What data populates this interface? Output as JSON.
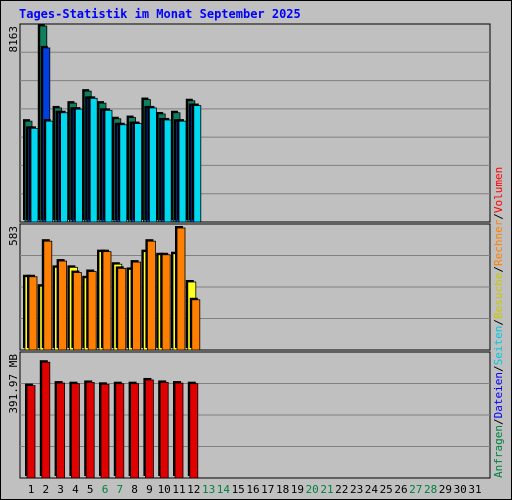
{
  "title": "Tages-Statistik im Monat September 2025",
  "colors": {
    "anfragen": "#0e8060",
    "dateien": "#0040e0",
    "seiten": "#00d8f0",
    "besuche": "#ffff20",
    "rechner": "#ff8000",
    "volumen": "#e00000",
    "weekend_label": "#008040",
    "weekday_label": "#000000"
  },
  "legend": [
    {
      "text": "Anfragen",
      "color": "#008040"
    },
    {
      "text": "/",
      "color": "#000000"
    },
    {
      "text": "Dateien",
      "color": "#0000ff"
    },
    {
      "text": "/",
      "color": "#000000"
    },
    {
      "text": "Seiten",
      "color": "#00c8e0"
    },
    {
      "text": "/",
      "color": "#000000"
    },
    {
      "text": "Besuche",
      "color": "#c8c800"
    },
    {
      "text": "/",
      "color": "#000000"
    },
    {
      "text": "Rechner",
      "color": "#ff8000"
    },
    {
      "text": "/",
      "color": "#000000"
    },
    {
      "text": "Volumen",
      "color": "#ff0000"
    }
  ],
  "chart_data": [
    {
      "type": "bar",
      "title": "Tages-Statistik im Monat September 2025",
      "ymax_label": "8163",
      "ylim": [
        0,
        8163
      ],
      "x": [
        1,
        2,
        3,
        4,
        5,
        6,
        7,
        8,
        9,
        10,
        11,
        12,
        13,
        14,
        15,
        16,
        17,
        18,
        19,
        20,
        21,
        22,
        23,
        24,
        25,
        26,
        27,
        28,
        29,
        30,
        31
      ],
      "series": [
        {
          "name": "Anfragen",
          "values": [
            4200,
            8163,
            4750,
            4950,
            5450,
            4950,
            4300,
            4350,
            5100,
            4500,
            4550,
            5050,
            0,
            0,
            0,
            0,
            0,
            0,
            0,
            0,
            0,
            0,
            0,
            0,
            0,
            0,
            0,
            0,
            0,
            0,
            0
          ]
        },
        {
          "name": "Dateien",
          "values": [
            3900,
            7250,
            4550,
            4700,
            5150,
            4650,
            4050,
            4100,
            4750,
            4250,
            4200,
            4850,
            0,
            0,
            0,
            0,
            0,
            0,
            0,
            0,
            0,
            0,
            0,
            0,
            0,
            0,
            0,
            0,
            0,
            0,
            0
          ]
        },
        {
          "name": "Seiten",
          "values": [
            3900,
            4200,
            4550,
            4700,
            5150,
            4650,
            4050,
            4100,
            4750,
            4250,
            4200,
            4850,
            0,
            0,
            0,
            0,
            0,
            0,
            0,
            0,
            0,
            0,
            0,
            0,
            0,
            0,
            0,
            0,
            0,
            0,
            0
          ]
        }
      ]
    },
    {
      "type": "bar",
      "ymax_label": "583",
      "ylim": [
        0,
        583
      ],
      "x": [
        1,
        2,
        3,
        4,
        5,
        6,
        7,
        8,
        9,
        10,
        11,
        12,
        13,
        14,
        15,
        16,
        17,
        18,
        19,
        20,
        21,
        22,
        23,
        24,
        25,
        26,
        27,
        28,
        29,
        30,
        31
      ],
      "series": [
        {
          "name": "Besuche",
          "values": [
            350,
            305,
            395,
            395,
            345,
            470,
            410,
            385,
            470,
            455,
            460,
            325,
            0,
            0,
            0,
            0,
            0,
            0,
            0,
            0,
            0,
            0,
            0,
            0,
            0,
            0,
            0,
            0,
            0,
            0,
            0
          ]
        },
        {
          "name": "Rechner",
          "values": [
            350,
            520,
            425,
            370,
            375,
            470,
            390,
            420,
            520,
            455,
            583,
            240,
            0,
            0,
            0,
            0,
            0,
            0,
            0,
            0,
            0,
            0,
            0,
            0,
            0,
            0,
            0,
            0,
            0,
            0,
            0
          ]
        }
      ]
    },
    {
      "type": "bar",
      "ymax_label": "391.97 MB",
      "ylim": [
        0,
        391.97
      ],
      "x": [
        1,
        2,
        3,
        4,
        5,
        6,
        7,
        8,
        9,
        10,
        11,
        12,
        13,
        14,
        15,
        16,
        17,
        18,
        19,
        20,
        21,
        22,
        23,
        24,
        25,
        26,
        27,
        28,
        29,
        30,
        31
      ],
      "series": [
        {
          "name": "Volumen",
          "values": [
            297,
            372,
            305,
            303,
            307,
            301,
            303,
            303,
            315,
            307,
            305,
            303,
            0,
            0,
            0,
            0,
            0,
            0,
            0,
            0,
            0,
            0,
            0,
            0,
            0,
            0,
            0,
            0,
            0,
            0,
            0
          ]
        }
      ]
    }
  ],
  "weekend_days": [
    6,
    7,
    13,
    14,
    20,
    21,
    27,
    28
  ]
}
